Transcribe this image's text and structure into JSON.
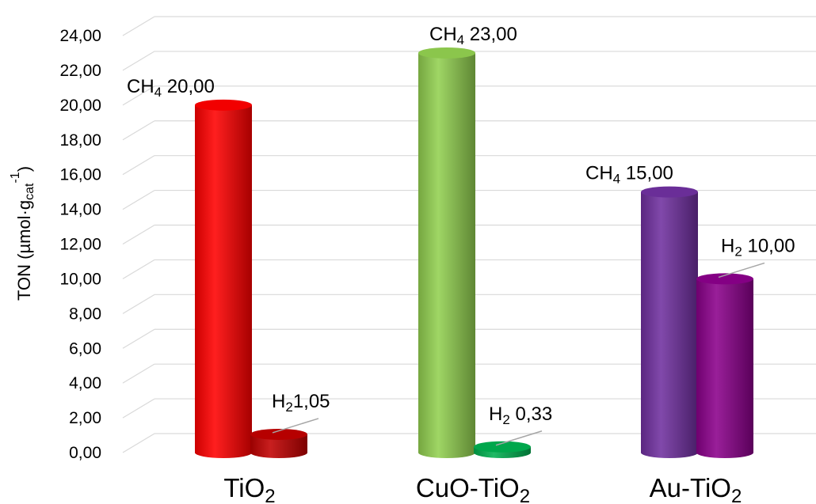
{
  "chart_data": {
    "type": "bar",
    "categories": [
      "TiO2",
      "CuO-TiO2",
      "Au-TiO2"
    ],
    "category_labels": [
      {
        "main": "TiO",
        "sub": "2",
        "post": ""
      },
      {
        "main": "CuO-TiO",
        "sub": "2",
        "post": ""
      },
      {
        "main": "Au-TiO",
        "sub": "2",
        "post": ""
      }
    ],
    "series": [
      {
        "name": "CH4",
        "values": [
          20.0,
          23.0,
          15.0
        ],
        "colors": [
          "#ff0000",
          "#92d050",
          "#7030a0"
        ],
        "labels": [
          {
            "main": "CH",
            "sub": "4",
            "post": " 20,00"
          },
          {
            "main": "CH",
            "sub": "4",
            "post": " 23,00"
          },
          {
            "main": "CH",
            "sub": "4",
            "post": " 15,00"
          }
        ]
      },
      {
        "name": "H2",
        "values": [
          1.05,
          0.33,
          10.0
        ],
        "colors": [
          "#c00000",
          "#00b050",
          "#8b008b"
        ],
        "labels": [
          {
            "main": "H",
            "sub": "2",
            "post": "1,05"
          },
          {
            "main": "H",
            "sub": "2",
            "post": " 0,33"
          },
          {
            "main": "H",
            "sub": "2",
            "post": " 10,00"
          }
        ]
      }
    ],
    "ylabel": {
      "main": "TON (µmol·g",
      "sub": "cat",
      "sup": "-1",
      "post": ")"
    },
    "ylim": [
      0,
      24
    ],
    "y_ticks": [
      "0,00",
      "2,00",
      "4,00",
      "6,00",
      "8,00",
      "10,00",
      "12,00",
      "14,00",
      "16,00",
      "18,00",
      "20,00",
      "22,00",
      "24,00"
    ],
    "y_tick_step": 2,
    "grid": true,
    "style": "3d-cylinder"
  }
}
